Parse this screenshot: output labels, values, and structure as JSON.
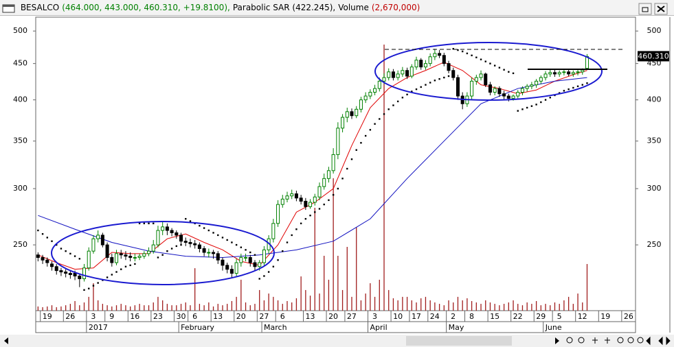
{
  "chart_data": {
    "type": "candlestick",
    "header": {
      "name": "BESALCO",
      "quote": "(464.000, 443.000, 460.310, +19.8100),",
      "sar": "Parabolic SAR (422.245),",
      "volume": "Volume",
      "volume_value": "(2,670,000)"
    },
    "ylim": [
      202,
      523
    ],
    "log_scale": true,
    "yticks": [
      250,
      300,
      350,
      400,
      450,
      500
    ],
    "y2lim": [
      0,
      16800000
    ],
    "xlim": [
      -0.5,
      129.5
    ],
    "xticks": [
      {
        "value": 1,
        "label": "19"
      },
      {
        "value": 6,
        "label": "26"
      },
      {
        "value": 11,
        "label": "3"
      },
      {
        "value": 15,
        "label": "9"
      },
      {
        "value": 20,
        "label": "16"
      },
      {
        "value": 25,
        "label": "23"
      },
      {
        "value": 30,
        "label": "30"
      },
      {
        "value": 33,
        "label": "6"
      },
      {
        "value": 38,
        "label": "13"
      },
      {
        "value": 43,
        "label": "20"
      },
      {
        "value": 48,
        "label": "27"
      },
      {
        "value": 52,
        "label": "6"
      },
      {
        "value": 58,
        "label": "13"
      },
      {
        "value": 63,
        "label": "20"
      },
      {
        "value": 67,
        "label": "27"
      },
      {
        "value": 72,
        "label": "3"
      },
      {
        "value": 77,
        "label": "10"
      },
      {
        "value": 81,
        "label": "17"
      },
      {
        "value": 85,
        "label": "24"
      },
      {
        "value": 89,
        "label": "2"
      },
      {
        "value": 93,
        "label": "8"
      },
      {
        "value": 98,
        "label": "15"
      },
      {
        "value": 103,
        "label": "22"
      },
      {
        "value": 108,
        "label": "29"
      },
      {
        "value": 112,
        "label": "5"
      },
      {
        "value": 117,
        "label": "12"
      },
      {
        "value": 122,
        "label": "19"
      },
      {
        "value": 127,
        "label": "26"
      }
    ],
    "month_ticks": [
      {
        "value": 11,
        "label": "2017"
      },
      {
        "value": 31,
        "label": "February"
      },
      {
        "value": 49,
        "label": "March"
      },
      {
        "value": 72,
        "label": "April"
      },
      {
        "value": 89,
        "label": "May"
      },
      {
        "value": 110,
        "label": "June"
      }
    ],
    "last_price": {
      "value": 460.31,
      "label": "460.310"
    },
    "candles": {
      "up_color": "#008000",
      "down_color": "#000000",
      "open": [
        242,
        240,
        238,
        235,
        233,
        230,
        229,
        228,
        228,
        226,
        224,
        232,
        245,
        255,
        258,
        250,
        240,
        236,
        243,
        242,
        241,
        240,
        240,
        241,
        243,
        245,
        250,
        262,
        265,
        262,
        260,
        258,
        253,
        252,
        251,
        250,
        247,
        244,
        244,
        243,
        238,
        234,
        231,
        228,
        236,
        240,
        240,
        236,
        233,
        236,
        246,
        255,
        268,
        285,
        290,
        293,
        295,
        291,
        288,
        283,
        287,
        292,
        302,
        310,
        318,
        335,
        365,
        378,
        385,
        380,
        388,
        400,
        405,
        410,
        415,
        425,
        430,
        438,
        430,
        435,
        440,
        432,
        445,
        455,
        445,
        450,
        460,
        465,
        462,
        450,
        440,
        430,
        405,
        395,
        405,
        425,
        430,
        435,
        420,
        410,
        415,
        408,
        405,
        402,
        405,
        410,
        415,
        418,
        420,
        425,
        430,
        435,
        437,
        435,
        437,
        438,
        435,
        437,
        438,
        443
      ],
      "high": [
        244,
        242,
        240,
        237,
        235,
        232,
        231,
        230,
        230,
        228,
        235,
        248,
        258,
        262,
        260,
        252,
        243,
        246,
        246,
        245,
        244,
        243,
        243,
        245,
        248,
        254,
        266,
        270,
        268,
        264,
        262,
        260,
        256,
        255,
        254,
        252,
        249,
        247,
        246,
        245,
        240,
        236,
        234,
        239,
        243,
        243,
        242,
        238,
        238,
        249,
        258,
        272,
        289,
        294,
        297,
        299,
        298,
        294,
        291,
        290,
        295,
        306,
        315,
        322,
        342,
        372,
        382,
        390,
        389,
        392,
        404,
        410,
        414,
        420,
        430,
        436,
        443,
        442,
        440,
        445,
        444,
        449,
        460,
        458,
        455,
        465,
        472,
        470,
        466,
        454,
        444,
        434,
        410,
        410,
        430,
        434,
        440,
        437,
        424,
        418,
        418,
        412,
        408,
        407,
        413,
        418,
        421,
        424,
        428,
        433,
        439,
        441,
        441,
        440,
        441,
        442,
        440,
        441,
        443,
        464
      ],
      "low": [
        237,
        235,
        233,
        230,
        227,
        226,
        225,
        224,
        223,
        218,
        222,
        230,
        243,
        252,
        248,
        237,
        233,
        234,
        239,
        238,
        237,
        237,
        238,
        239,
        241,
        243,
        248,
        258,
        258,
        257,
        255,
        250,
        249,
        248,
        247,
        244,
        241,
        240,
        239,
        235,
        230,
        228,
        225,
        226,
        233,
        237,
        233,
        230,
        230,
        234,
        243,
        252,
        265,
        282,
        287,
        290,
        288,
        285,
        280,
        281,
        284,
        289,
        299,
        306,
        315,
        330,
        360,
        372,
        376,
        377,
        384,
        396,
        401,
        406,
        411,
        421,
        426,
        426,
        426,
        431,
        428,
        429,
        441,
        441,
        441,
        446,
        455,
        458,
        446,
        436,
        426,
        400,
        388,
        391,
        401,
        420,
        426,
        417,
        406,
        406,
        404,
        401,
        398,
        399,
        402,
        406,
        411,
        414,
        416,
        421,
        426,
        431,
        431,
        431,
        433,
        432,
        431,
        433,
        434,
        443
      ],
      "close": [
        240,
        238,
        236,
        233,
        230,
        229,
        228,
        227,
        226,
        224,
        232,
        245,
        255,
        258,
        250,
        240,
        236,
        243,
        242,
        241,
        240,
        240,
        241,
        243,
        245,
        250,
        262,
        265,
        262,
        260,
        258,
        253,
        252,
        251,
        250,
        247,
        244,
        244,
        243,
        238,
        234,
        231,
        228,
        236,
        240,
        240,
        236,
        233,
        236,
        246,
        255,
        268,
        285,
        290,
        293,
        295,
        291,
        288,
        283,
        287,
        292,
        302,
        310,
        318,
        335,
        365,
        378,
        385,
        380,
        388,
        400,
        405,
        410,
        415,
        425,
        430,
        438,
        430,
        435,
        440,
        432,
        445,
        455,
        445,
        450,
        460,
        465,
        462,
        450,
        440,
        430,
        405,
        395,
        405,
        425,
        430,
        435,
        420,
        410,
        415,
        408,
        405,
        402,
        405,
        410,
        415,
        418,
        420,
        425,
        430,
        435,
        437,
        435,
        437,
        438,
        435,
        437,
        438,
        440.5,
        460.31
      ]
    },
    "sar": {
      "color": "#000000",
      "values": [
        262,
        259,
        256,
        253,
        250,
        247,
        245,
        243,
        241,
        239,
        216,
        217,
        219,
        221,
        223,
        225,
        227,
        229,
        231,
        233,
        234,
        235,
        268,
        268,
        268,
        268,
        240,
        242,
        245,
        247,
        249,
        250,
        272,
        270,
        268,
        266,
        264,
        262,
        260,
        258,
        256,
        254,
        252,
        250,
        248,
        246,
        244,
        242,
        224,
        226,
        229,
        233,
        238,
        245,
        252,
        258,
        263,
        268,
        272,
        275,
        278,
        281,
        285,
        289,
        294,
        300,
        310,
        320,
        330,
        340,
        348,
        356,
        363,
        370,
        376,
        382,
        388,
        393,
        398,
        403,
        407,
        411,
        414,
        417,
        420,
        423,
        426,
        428,
        430,
        432,
        472,
        470,
        468,
        465,
        462,
        459,
        456,
        453,
        450,
        447,
        444,
        441,
        438,
        436,
        386,
        388,
        390,
        392,
        394,
        397,
        400,
        403,
        406,
        409,
        412,
        414,
        416,
        418,
        420,
        422.245
      ]
    },
    "volume": {
      "color": "#a01c1c",
      "axis": "y2",
      "values": [
        240000,
        200000,
        240000,
        310000,
        200000,
        240000,
        310000,
        390000,
        550000,
        310000,
        470000,
        790000,
        1570000,
        590000,
        390000,
        310000,
        240000,
        310000,
        390000,
        310000,
        240000,
        310000,
        390000,
        310000,
        310000,
        470000,
        790000,
        590000,
        390000,
        310000,
        310000,
        390000,
        470000,
        310000,
        2430000,
        390000,
        310000,
        470000,
        240000,
        390000,
        310000,
        390000,
        550000,
        790000,
        1770000,
        470000,
        310000,
        390000,
        1180000,
        590000,
        980000,
        790000,
        590000,
        390000,
        550000,
        470000,
        710000,
        1960000,
        1180000,
        860000,
        5890000,
        980000,
        3140000,
        1770000,
        7580000,
        3140000,
        1180000,
        3650000,
        790000,
        4790000,
        590000,
        980000,
        1570000,
        790000,
        1770000,
        15230000,
        1180000,
        710000,
        590000,
        790000,
        790000,
        590000,
        470000,
        710000,
        790000,
        590000,
        470000,
        390000,
        310000,
        590000,
        470000,
        790000,
        590000,
        710000,
        550000,
        470000,
        390000,
        590000,
        470000,
        390000,
        310000,
        390000,
        470000,
        590000,
        390000,
        310000,
        470000,
        390000,
        550000,
        310000,
        390000,
        310000,
        470000,
        390000,
        590000,
        790000,
        390000,
        980000,
        470000,
        2670000
      ]
    },
    "lines": [
      {
        "color": "#e00000",
        "x": [
          0,
          4,
          8,
          12,
          16,
          20,
          24,
          28,
          32,
          36,
          40,
          44,
          48,
          52,
          56,
          60,
          64,
          68,
          72,
          76,
          80,
          84,
          88,
          92,
          96,
          100,
          104,
          108,
          112,
          116,
          119
        ],
        "values": [
          242,
          236,
          231,
          232,
          244,
          243,
          243,
          255,
          259,
          252,
          246,
          237,
          234,
          250,
          278,
          287,
          300,
          345,
          390,
          415,
          430,
          440,
          452,
          440,
          420,
          415,
          408,
          413,
          425,
          434,
          440
        ]
      },
      {
        "color": "#1010c0",
        "x": [
          0,
          8,
          16,
          24,
          32,
          40,
          48,
          56,
          64,
          72,
          80,
          88,
          96,
          104,
          112,
          119
        ],
        "values": [
          275,
          263,
          252,
          245,
          241,
          240,
          242,
          246,
          253,
          272,
          310,
          350,
          395,
          415,
          425,
          430
        ]
      }
    ]
  }
}
